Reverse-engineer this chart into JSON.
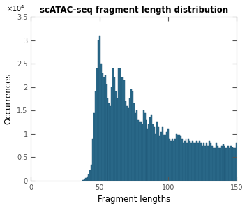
{
  "title": "scATAC-seq fragment length distribution",
  "xlabel": "Fragment lengths",
  "ylabel": "Occurrences",
  "xlim": [
    0,
    150
  ],
  "ylim": [
    0,
    35000
  ],
  "ytick_scale": 10000,
  "bar_color": "#2E6E8E",
  "bar_edge_color": "#1a5070",
  "background_color": "#ffffff",
  "fragment_lengths": [
    38,
    39,
    40,
    41,
    42,
    43,
    44,
    45,
    46,
    47,
    48,
    49,
    50,
    51,
    52,
    53,
    54,
    55,
    56,
    57,
    58,
    59,
    60,
    61,
    62,
    63,
    64,
    65,
    66,
    67,
    68,
    69,
    70,
    71,
    72,
    73,
    74,
    75,
    76,
    77,
    78,
    79,
    80,
    81,
    82,
    83,
    84,
    85,
    86,
    87,
    88,
    89,
    90,
    91,
    92,
    93,
    94,
    95,
    96,
    97,
    98,
    99,
    100,
    101,
    102,
    103,
    104,
    105,
    106,
    107,
    108,
    109,
    110,
    111,
    112,
    113,
    114,
    115,
    116,
    117,
    118,
    119,
    120,
    121,
    122,
    123,
    124,
    125,
    126,
    127,
    128,
    129,
    130,
    131,
    132,
    133,
    134,
    135,
    136,
    137,
    138,
    139,
    140,
    141,
    142,
    143,
    144,
    145,
    146,
    147,
    148,
    149,
    150
  ],
  "counts": [
    200,
    350,
    600,
    900,
    1400,
    2200,
    3500,
    9000,
    14500,
    19000,
    24000,
    30000,
    31000,
    25000,
    23000,
    22000,
    22500,
    20500,
    17500,
    16500,
    16000,
    20000,
    24000,
    22000,
    19000,
    17500,
    24000,
    24000,
    22000,
    22000,
    21500,
    17000,
    16000,
    15500,
    17500,
    19500,
    19000,
    16500,
    14500,
    15000,
    13000,
    12500,
    12500,
    12000,
    15000,
    14500,
    13000,
    11000,
    12000,
    13500,
    14000,
    12000,
    11500,
    10000,
    12500,
    11500,
    9500,
    10500,
    11500,
    9800,
    9800,
    10500,
    11000,
    9000,
    8500,
    9000,
    8500,
    9000,
    10000,
    9800,
    9800,
    9500,
    9000,
    8000,
    8500,
    9000,
    8000,
    9000,
    8500,
    8000,
    8500,
    8000,
    8000,
    8500,
    8000,
    8500,
    8000,
    7500,
    8000,
    7500,
    8000,
    7500,
    8500,
    8000,
    7500,
    7000,
    7000,
    8000,
    7500,
    7000,
    7000,
    7500,
    7800,
    7500,
    7000,
    7000,
    7500,
    7000,
    7500,
    7200,
    7000,
    7000,
    8000
  ]
}
